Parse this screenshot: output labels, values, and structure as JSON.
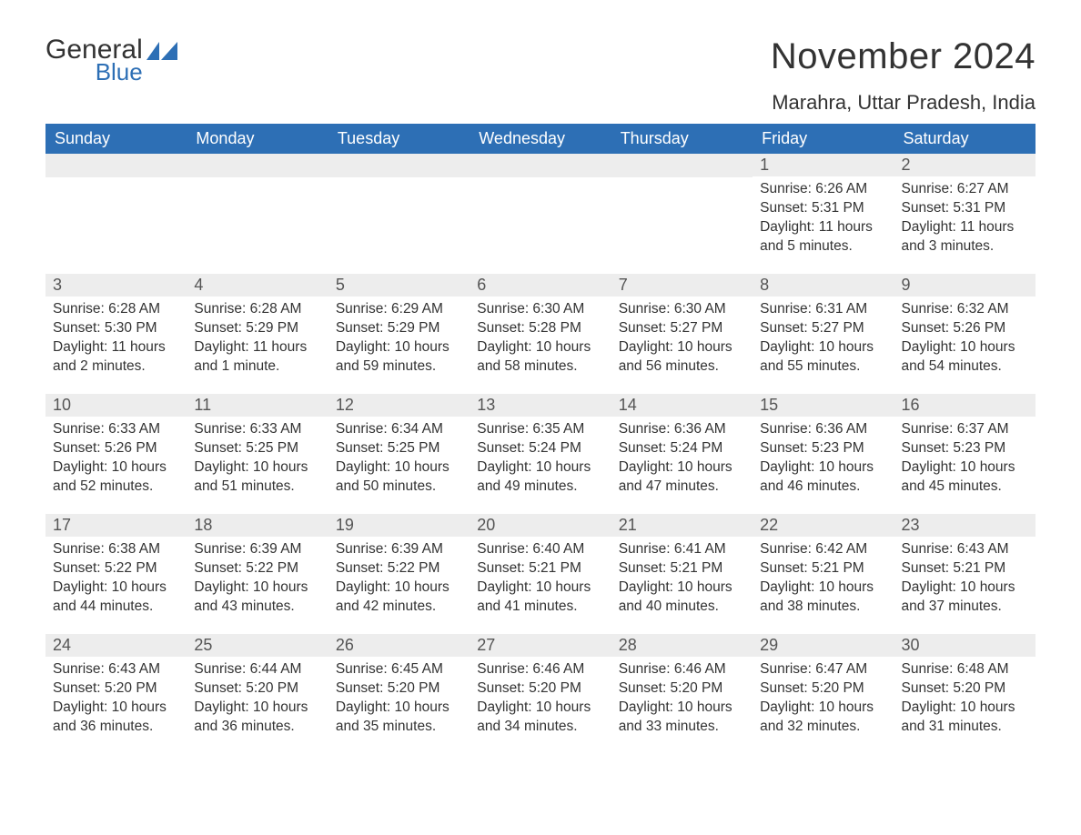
{
  "logo": {
    "word1": "General",
    "word2": "Blue"
  },
  "title": "November 2024",
  "location": "Marahra, Uttar Pradesh, India",
  "colors": {
    "header_bg": "#2d6fb5",
    "header_text": "#ffffff",
    "daynum_bg": "#ededed",
    "border": "#2d6fb5",
    "body_text": "#333333"
  },
  "columns": [
    "Sunday",
    "Monday",
    "Tuesday",
    "Wednesday",
    "Thursday",
    "Friday",
    "Saturday"
  ],
  "weeks": [
    [
      {
        "empty": true
      },
      {
        "empty": true
      },
      {
        "empty": true
      },
      {
        "empty": true
      },
      {
        "empty": true
      },
      {
        "day": "1",
        "sunrise": "Sunrise: 6:26 AM",
        "sunset": "Sunset: 5:31 PM",
        "daylight": "Daylight: 11 hours and 5 minutes."
      },
      {
        "day": "2",
        "sunrise": "Sunrise: 6:27 AM",
        "sunset": "Sunset: 5:31 PM",
        "daylight": "Daylight: 11 hours and 3 minutes."
      }
    ],
    [
      {
        "day": "3",
        "sunrise": "Sunrise: 6:28 AM",
        "sunset": "Sunset: 5:30 PM",
        "daylight": "Daylight: 11 hours and 2 minutes."
      },
      {
        "day": "4",
        "sunrise": "Sunrise: 6:28 AM",
        "sunset": "Sunset: 5:29 PM",
        "daylight": "Daylight: 11 hours and 1 minute."
      },
      {
        "day": "5",
        "sunrise": "Sunrise: 6:29 AM",
        "sunset": "Sunset: 5:29 PM",
        "daylight": "Daylight: 10 hours and 59 minutes."
      },
      {
        "day": "6",
        "sunrise": "Sunrise: 6:30 AM",
        "sunset": "Sunset: 5:28 PM",
        "daylight": "Daylight: 10 hours and 58 minutes."
      },
      {
        "day": "7",
        "sunrise": "Sunrise: 6:30 AM",
        "sunset": "Sunset: 5:27 PM",
        "daylight": "Daylight: 10 hours and 56 minutes."
      },
      {
        "day": "8",
        "sunrise": "Sunrise: 6:31 AM",
        "sunset": "Sunset: 5:27 PM",
        "daylight": "Daylight: 10 hours and 55 minutes."
      },
      {
        "day": "9",
        "sunrise": "Sunrise: 6:32 AM",
        "sunset": "Sunset: 5:26 PM",
        "daylight": "Daylight: 10 hours and 54 minutes."
      }
    ],
    [
      {
        "day": "10",
        "sunrise": "Sunrise: 6:33 AM",
        "sunset": "Sunset: 5:26 PM",
        "daylight": "Daylight: 10 hours and 52 minutes."
      },
      {
        "day": "11",
        "sunrise": "Sunrise: 6:33 AM",
        "sunset": "Sunset: 5:25 PM",
        "daylight": "Daylight: 10 hours and 51 minutes."
      },
      {
        "day": "12",
        "sunrise": "Sunrise: 6:34 AM",
        "sunset": "Sunset: 5:25 PM",
        "daylight": "Daylight: 10 hours and 50 minutes."
      },
      {
        "day": "13",
        "sunrise": "Sunrise: 6:35 AM",
        "sunset": "Sunset: 5:24 PM",
        "daylight": "Daylight: 10 hours and 49 minutes."
      },
      {
        "day": "14",
        "sunrise": "Sunrise: 6:36 AM",
        "sunset": "Sunset: 5:24 PM",
        "daylight": "Daylight: 10 hours and 47 minutes."
      },
      {
        "day": "15",
        "sunrise": "Sunrise: 6:36 AM",
        "sunset": "Sunset: 5:23 PM",
        "daylight": "Daylight: 10 hours and 46 minutes."
      },
      {
        "day": "16",
        "sunrise": "Sunrise: 6:37 AM",
        "sunset": "Sunset: 5:23 PM",
        "daylight": "Daylight: 10 hours and 45 minutes."
      }
    ],
    [
      {
        "day": "17",
        "sunrise": "Sunrise: 6:38 AM",
        "sunset": "Sunset: 5:22 PM",
        "daylight": "Daylight: 10 hours and 44 minutes."
      },
      {
        "day": "18",
        "sunrise": "Sunrise: 6:39 AM",
        "sunset": "Sunset: 5:22 PM",
        "daylight": "Daylight: 10 hours and 43 minutes."
      },
      {
        "day": "19",
        "sunrise": "Sunrise: 6:39 AM",
        "sunset": "Sunset: 5:22 PM",
        "daylight": "Daylight: 10 hours and 42 minutes."
      },
      {
        "day": "20",
        "sunrise": "Sunrise: 6:40 AM",
        "sunset": "Sunset: 5:21 PM",
        "daylight": "Daylight: 10 hours and 41 minutes."
      },
      {
        "day": "21",
        "sunrise": "Sunrise: 6:41 AM",
        "sunset": "Sunset: 5:21 PM",
        "daylight": "Daylight: 10 hours and 40 minutes."
      },
      {
        "day": "22",
        "sunrise": "Sunrise: 6:42 AM",
        "sunset": "Sunset: 5:21 PM",
        "daylight": "Daylight: 10 hours and 38 minutes."
      },
      {
        "day": "23",
        "sunrise": "Sunrise: 6:43 AM",
        "sunset": "Sunset: 5:21 PM",
        "daylight": "Daylight: 10 hours and 37 minutes."
      }
    ],
    [
      {
        "day": "24",
        "sunrise": "Sunrise: 6:43 AM",
        "sunset": "Sunset: 5:20 PM",
        "daylight": "Daylight: 10 hours and 36 minutes."
      },
      {
        "day": "25",
        "sunrise": "Sunrise: 6:44 AM",
        "sunset": "Sunset: 5:20 PM",
        "daylight": "Daylight: 10 hours and 36 minutes."
      },
      {
        "day": "26",
        "sunrise": "Sunrise: 6:45 AM",
        "sunset": "Sunset: 5:20 PM",
        "daylight": "Daylight: 10 hours and 35 minutes."
      },
      {
        "day": "27",
        "sunrise": "Sunrise: 6:46 AM",
        "sunset": "Sunset: 5:20 PM",
        "daylight": "Daylight: 10 hours and 34 minutes."
      },
      {
        "day": "28",
        "sunrise": "Sunrise: 6:46 AM",
        "sunset": "Sunset: 5:20 PM",
        "daylight": "Daylight: 10 hours and 33 minutes."
      },
      {
        "day": "29",
        "sunrise": "Sunrise: 6:47 AM",
        "sunset": "Sunset: 5:20 PM",
        "daylight": "Daylight: 10 hours and 32 minutes."
      },
      {
        "day": "30",
        "sunrise": "Sunrise: 6:48 AM",
        "sunset": "Sunset: 5:20 PM",
        "daylight": "Daylight: 10 hours and 31 minutes."
      }
    ]
  ]
}
